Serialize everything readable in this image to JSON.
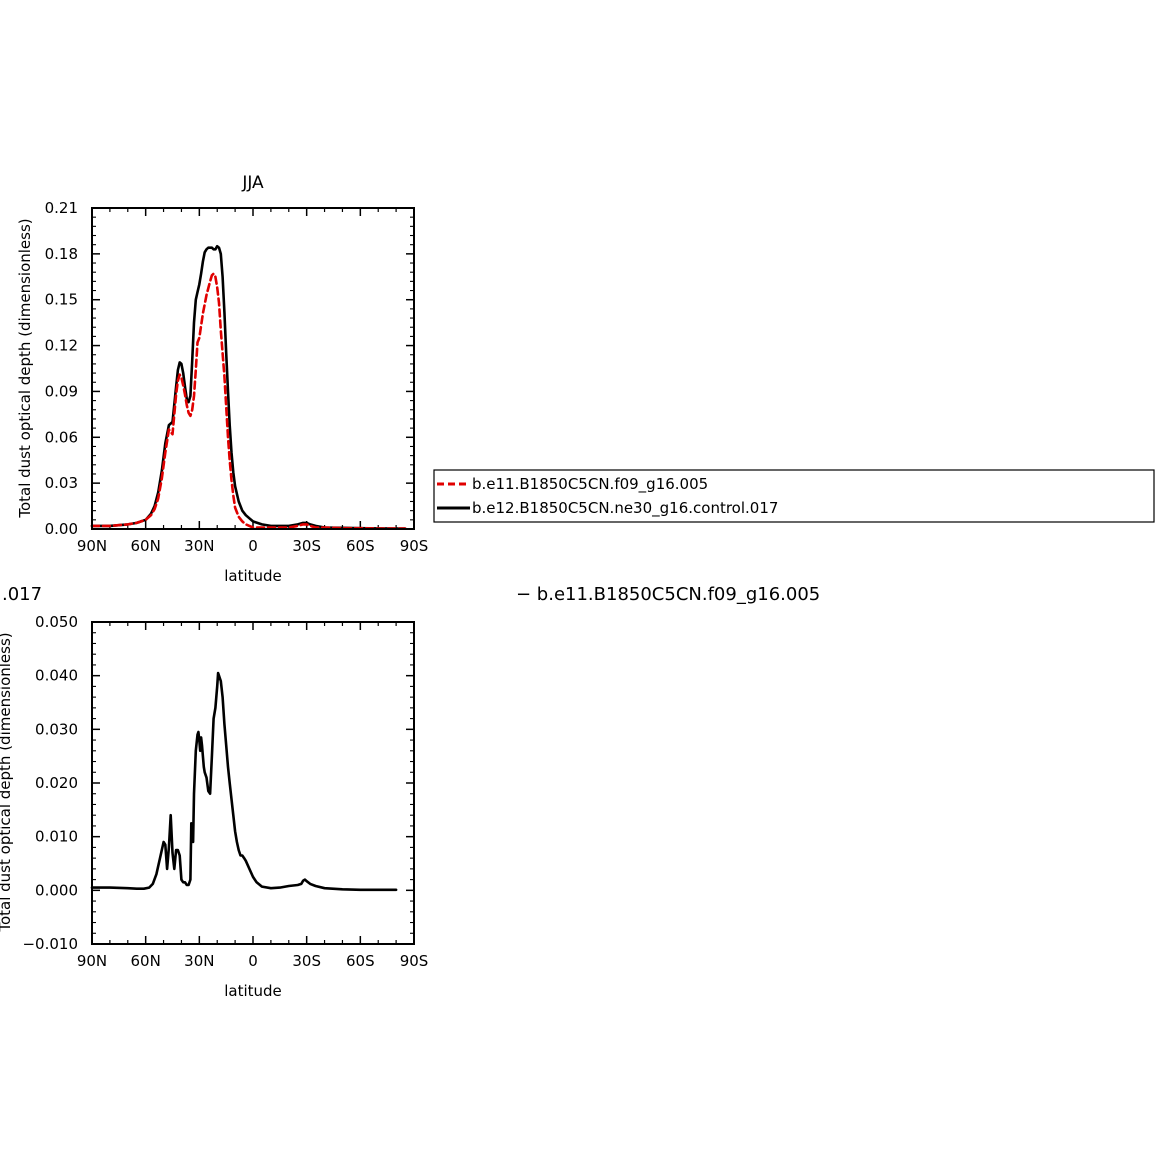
{
  "chart_data": [
    {
      "type": "line",
      "title": "JJA",
      "xlabel": "latitude",
      "ylabel": "Total dust optical depth (dimensionless)",
      "xlim": [
        90,
        -90
      ],
      "ylim": [
        0.0,
        0.21
      ],
      "x_ticks": [
        90,
        60,
        30,
        0,
        -30,
        -60,
        -90
      ],
      "x_tick_labels": [
        "90N",
        "60N",
        "30N",
        "0",
        "30S",
        "60S",
        "90S"
      ],
      "y_ticks": [
        0.0,
        0.03,
        0.06,
        0.09,
        0.12,
        0.15,
        0.18,
        0.21
      ],
      "y_tick_labels": [
        "0.00",
        "0.03",
        "0.06",
        "0.09",
        "0.12",
        "0.15",
        "0.18",
        "0.21"
      ],
      "legend": "right, outside plot",
      "series": [
        {
          "name": "b.e11.B1850C5CN.f09_g16.005",
          "color": "#e00000",
          "dash": "dashed",
          "x": [
            90,
            80,
            70,
            65,
            60,
            57,
            55,
            53,
            51,
            49,
            47,
            45,
            43,
            42,
            41,
            40,
            39,
            38,
            37,
            36,
            35,
            34,
            33,
            32,
            31,
            30,
            28,
            26,
            24,
            23,
            22,
            21,
            20,
            19,
            18,
            17,
            16,
            15,
            14,
            13,
            12,
            11,
            10,
            8,
            6,
            4,
            2,
            0,
            -5,
            -10,
            -15,
            -20,
            -25,
            -28,
            -30,
            -32,
            -35,
            -40,
            -50,
            -60,
            -70,
            -80,
            -85
          ],
          "y": [
            0.002,
            0.002,
            0.003,
            0.004,
            0.006,
            0.009,
            0.013,
            0.02,
            0.033,
            0.05,
            0.065,
            0.062,
            0.088,
            0.097,
            0.101,
            0.099,
            0.094,
            0.088,
            0.081,
            0.076,
            0.074,
            0.078,
            0.087,
            0.104,
            0.122,
            0.125,
            0.141,
            0.153,
            0.162,
            0.166,
            0.167,
            0.165,
            0.158,
            0.148,
            0.13,
            0.115,
            0.1,
            0.08,
            0.06,
            0.045,
            0.032,
            0.022,
            0.014,
            0.008,
            0.005,
            0.003,
            0.002,
            0.001,
            0.001,
            0.001,
            0.001,
            0.001,
            0.002,
            0.003,
            0.003,
            0.002,
            0.001,
            0.001,
            0.0005,
            0.0005,
            0.0003,
            0.0003,
            0.0003
          ]
        },
        {
          "name": "b.e12.B1850C5CN.ne30_g16.control.017",
          "color": "#000000",
          "dash": "solid",
          "x": [
            90,
            80,
            70,
            65,
            60,
            57,
            55,
            53,
            51,
            49,
            47,
            45,
            43,
            42,
            41,
            40,
            39,
            38,
            37,
            36,
            35,
            34,
            33,
            32,
            31,
            30,
            29,
            28,
            27,
            26,
            25,
            24,
            23,
            22,
            21,
            20,
            19,
            18,
            17,
            16,
            15,
            14,
            13,
            12,
            11,
            10,
            8,
            6,
            4,
            2,
            0,
            -5,
            -10,
            -15,
            -20,
            -25,
            -28,
            -30,
            -32,
            -35,
            -40,
            -50,
            -60,
            -70,
            -80,
            -85
          ],
          "y": [
            0.002,
            0.002,
            0.003,
            0.004,
            0.006,
            0.01,
            0.015,
            0.024,
            0.038,
            0.056,
            0.068,
            0.07,
            0.093,
            0.104,
            0.109,
            0.108,
            0.102,
            0.093,
            0.085,
            0.083,
            0.087,
            0.11,
            0.135,
            0.15,
            0.155,
            0.16,
            0.167,
            0.175,
            0.181,
            0.183,
            0.184,
            0.184,
            0.184,
            0.183,
            0.183,
            0.185,
            0.184,
            0.18,
            0.165,
            0.142,
            0.115,
            0.09,
            0.068,
            0.05,
            0.037,
            0.028,
            0.018,
            0.012,
            0.009,
            0.007,
            0.005,
            0.003,
            0.002,
            0.002,
            0.002,
            0.003,
            0.004,
            0.004,
            0.003,
            0.002,
            0.001,
            0.0008,
            0.0005,
            0.0004,
            0.0003,
            0.0003
          ]
        }
      ]
    },
    {
      "type": "line",
      "title": "",
      "xlabel": "latitude",
      "ylabel": "Total dust optical depth (dimensionless)",
      "xlim": [
        90,
        -90
      ],
      "ylim": [
        -0.01,
        0.05
      ],
      "x_ticks": [
        90,
        60,
        30,
        0,
        -30,
        -60,
        -90
      ],
      "x_tick_labels": [
        "90N",
        "60N",
        "30N",
        "0",
        "30S",
        "60S",
        "90S"
      ],
      "y_ticks": [
        -0.01,
        0.0,
        0.01,
        0.02,
        0.03,
        0.04,
        0.05
      ],
      "y_tick_labels": [
        "−0.010",
        "0.000",
        "0.010",
        "0.020",
        "0.030",
        "0.040",
        "0.050"
      ],
      "partial_title": ".017",
      "legend_fragment": "−  b.e11.B1850C5CN.f09_g16.005",
      "series": [
        {
          "name": "",
          "color": "#000000",
          "dash": "solid",
          "x": [
            90,
            80,
            70,
            65,
            61,
            58,
            56,
            54,
            52,
            50,
            49,
            48,
            47,
            46,
            45,
            44,
            43,
            42,
            41,
            40,
            39,
            38,
            37,
            36,
            35,
            34.5,
            34,
            33.5,
            33,
            32,
            31,
            30.5,
            30,
            29.5,
            29,
            28.5,
            28,
            27.5,
            27,
            26,
            25,
            24,
            23,
            22,
            21,
            20.5,
            20,
            19.5,
            19,
            18.5,
            18,
            17,
            16,
            15,
            14,
            13,
            12,
            11,
            10,
            9,
            8,
            7,
            6,
            5,
            4,
            2,
            0,
            -2,
            -5,
            -10,
            -15,
            -20,
            -25,
            -27,
            -28,
            -29,
            -30,
            -32,
            -35,
            -40,
            -50,
            -60,
            -70,
            -80
          ],
          "y": [
            0.0005,
            0.0005,
            0.0004,
            0.0003,
            0.0003,
            0.0005,
            0.0012,
            0.003,
            0.006,
            0.009,
            0.0085,
            0.004,
            0.008,
            0.014,
            0.007,
            0.004,
            0.0075,
            0.0075,
            0.0065,
            0.002,
            0.0015,
            0.0015,
            0.001,
            0.001,
            0.002,
            0.0125,
            0.011,
            0.009,
            0.018,
            0.026,
            0.029,
            0.0295,
            0.028,
            0.026,
            0.0285,
            0.027,
            0.025,
            0.023,
            0.022,
            0.021,
            0.0185,
            0.018,
            0.025,
            0.032,
            0.034,
            0.036,
            0.038,
            0.0405,
            0.04,
            0.0395,
            0.039,
            0.036,
            0.031,
            0.027,
            0.023,
            0.02,
            0.017,
            0.014,
            0.011,
            0.009,
            0.0075,
            0.0065,
            0.0065,
            0.006,
            0.0055,
            0.004,
            0.0025,
            0.0015,
            0.0007,
            0.0004,
            0.0005,
            0.0008,
            0.001,
            0.0012,
            0.0018,
            0.002,
            0.0017,
            0.0012,
            0.0008,
            0.0004,
            0.0002,
            0.0001,
            0.0001,
            0.0001
          ]
        }
      ]
    }
  ]
}
